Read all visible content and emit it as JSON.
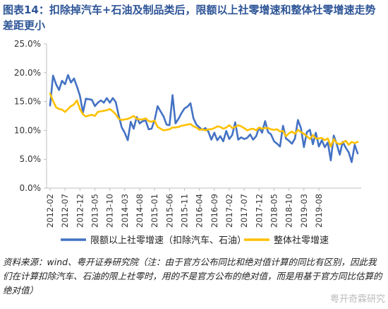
{
  "figure": {
    "title": "图表14：扣除掉汽车+石油及制品类后，限额以上社零增速和整体社零增速走势差距更小",
    "source": "资料来源：wind、粤开证券研究院（注：由于官方公布同比和绝对值计算的同比有区别，因此我们在计算扣除汽车、石油的限上社零时，用的不是官方公布的绝对值，而是用基于官方同比估算的绝对值）",
    "watermark": "粤开奇霖研究"
  },
  "colors": {
    "series1": "#4472c4",
    "series2": "#ffc000",
    "axis": "#bfbfbf",
    "title": "#2e5597"
  },
  "chart_data": {
    "type": "line",
    "title": "",
    "xlabel": "",
    "ylabel": "",
    "ylim": [
      0,
      25
    ],
    "yticks": [
      "0.0%",
      "5.0%",
      "10.0%",
      "15.0%",
      "20.0%",
      "25.0%"
    ],
    "xtick_labels": [
      "2012-02",
      "2012-07",
      "2012-12",
      "2013-05",
      "2013-10",
      "2014-03",
      "2014-08",
      "2015-01",
      "2015-06",
      "2015-11",
      "2016-04",
      "2016-09",
      "2017-02",
      "2017-07",
      "2017-12",
      "2018-05",
      "2018-10",
      "2019-03",
      "2019-08"
    ],
    "grid": false,
    "legend": "bottom",
    "series": [
      {
        "name": "限额以上社零增速（扣除汽车、石油）",
        "values": [
          14.3,
          19.5,
          18.0,
          17.0,
          18.6,
          18.0,
          19.6,
          18.3,
          19.0,
          17.6,
          16.0,
          13.1,
          15.5,
          15.4,
          15.3,
          14.2,
          14.8,
          15.2,
          14.8,
          15.6,
          14.8,
          15.6,
          14.9,
          12.5,
          10.5,
          9.6,
          8.3,
          11.5,
          10.3,
          12.3,
          11.2,
          11.6,
          11.7,
          10.2,
          10.3,
          11.8,
          14.2,
          13.3,
          12.4,
          11.0,
          10.9,
          16.1,
          11.2,
          12.0,
          13.0,
          13.8,
          14.1,
          14.7,
          12.1,
          11.0,
          10.5,
          10.1,
          10.4,
          9.8,
          8.4,
          9.6,
          8.3,
          9.0,
          8.1,
          9.9,
          8.5,
          9.2,
          11.4,
          8.4,
          8.8,
          8.5,
          8.7,
          9.3,
          8.4,
          9.0,
          10.5,
          9.6,
          11.6,
          9.7,
          9.3,
          8.1,
          7.7,
          7.2,
          10.8,
          8.6,
          8.2,
          7.7,
          8.6,
          11.8,
          10.4,
          7.1,
          9.7,
          10.1,
          7.6,
          9.6,
          7.2,
          8.3,
          7.1,
          7.9,
          4.8,
          9.1,
          7.6,
          5.8,
          8.0,
          7.0,
          6.2,
          4.5,
          7.5,
          6.0
        ]
      },
      {
        "name": "整体社零增速",
        "values": [
          16.4,
          15.1,
          14.0,
          13.7,
          13.6,
          13.2,
          13.7,
          14.2,
          14.5,
          15.2,
          13.7,
          12.8,
          12.4,
          12.6,
          12.7,
          12.5,
          13.2,
          13.3,
          13.4,
          13.5,
          13.7,
          13.3,
          12.8,
          12.0,
          11.8,
          11.9,
          12.0,
          12.2,
          12.5,
          12.0,
          11.9,
          11.9,
          12.1,
          11.6,
          11.5,
          11.7,
          10.6,
          10.3,
          10.0,
          10.1,
          10.2,
          10.5,
          10.5,
          10.6,
          10.8,
          10.9,
          11.0,
          11.1,
          10.7,
          10.5,
          10.1,
          10.2,
          10.0,
          10.2,
          10.2,
          10.4,
          10.7,
          10.6,
          10.3,
          10.5,
          10.9,
          10.4,
          10.6,
          10.9,
          10.7,
          10.4,
          10.0,
          10.2,
          10.3,
          10.0,
          10.5,
          10.3,
          10.4,
          10.4,
          10.2,
          10.1,
          10.2,
          9.8,
          9.9,
          9.0,
          9.5,
          9.8,
          9.4,
          10.1,
          9.7,
          9.4,
          9.0,
          8.5,
          9.2,
          8.6,
          8.6,
          8.7,
          8.3,
          8.6,
          7.2,
          8.5,
          7.8,
          7.6,
          7.9,
          8.2,
          7.5,
          8.0,
          7.8,
          8.0
        ]
      }
    ]
  }
}
